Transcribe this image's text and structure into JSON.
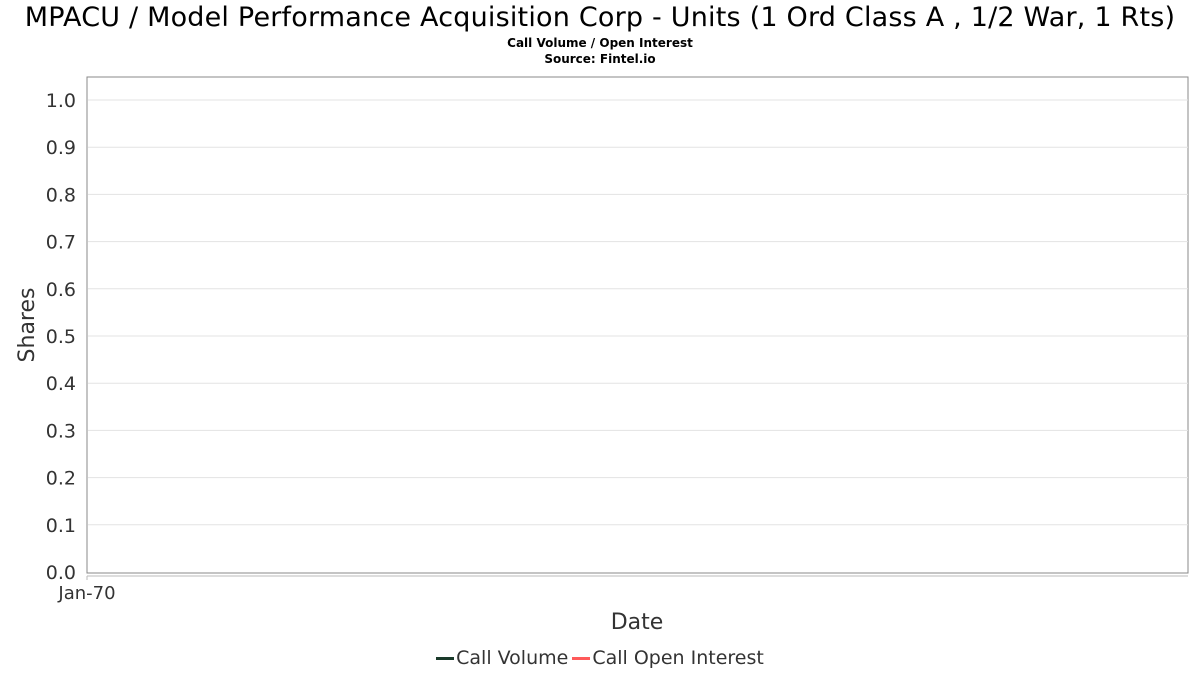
{
  "chart_data": {
    "type": "line",
    "title": "MPACU / Model Performance Acquisition Corp - Units (1 Ord Class A , 1/2 War, 1 Rts)",
    "subtitle": "Call Volume / Open Interest",
    "source": "Source: Fintel.io",
    "xlabel": "Date",
    "ylabel": "Shares",
    "x_ticks": [
      "Jan-70"
    ],
    "y_ticks": [
      "0.0",
      "0.1",
      "0.2",
      "0.3",
      "0.4",
      "0.5",
      "0.6",
      "0.7",
      "0.8",
      "0.9",
      "1.0"
    ],
    "ylim": [
      0,
      1.05
    ],
    "grid": true,
    "legend_position": "bottom",
    "series": [
      {
        "name": "Call Volume",
        "color": "#1a3a2a",
        "values": []
      },
      {
        "name": "Call Open Interest",
        "color": "#ff5a5a",
        "values": []
      }
    ]
  }
}
